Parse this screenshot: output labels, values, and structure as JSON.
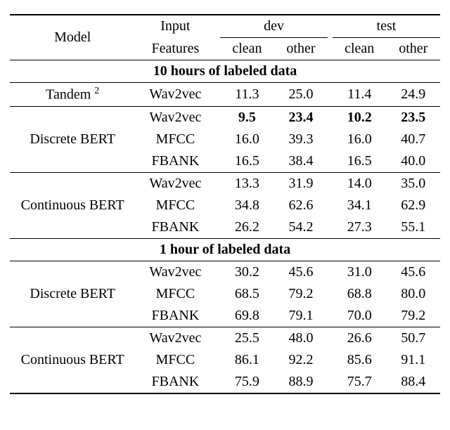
{
  "header": {
    "model": "Model",
    "features_top": "Input",
    "features_bottom": "Features",
    "dev": "dev",
    "test": "test",
    "clean": "clean",
    "other": "other"
  },
  "sections": [
    {
      "title": "10 hours of labeled data",
      "groups": [
        {
          "model": "Tandem",
          "sup": "2",
          "rows": [
            {
              "feat": "Wav2vec",
              "dev_clean": "11.3",
              "dev_other": "25.0",
              "test_clean": "11.4",
              "test_other": "24.9",
              "bold": false
            }
          ]
        },
        {
          "model": "Discrete BERT",
          "rows": [
            {
              "feat": "Wav2vec",
              "dev_clean": "9.5",
              "dev_other": "23.4",
              "test_clean": "10.2",
              "test_other": "23.5",
              "bold": true
            },
            {
              "feat": "MFCC",
              "dev_clean": "16.0",
              "dev_other": "39.3",
              "test_clean": "16.0",
              "test_other": "40.7",
              "bold": false
            },
            {
              "feat": "FBANK",
              "dev_clean": "16.5",
              "dev_other": "38.4",
              "test_clean": "16.5",
              "test_other": "40.0",
              "bold": false
            }
          ]
        },
        {
          "model": "Continuous BERT",
          "rows": [
            {
              "feat": "Wav2vec",
              "dev_clean": "13.3",
              "dev_other": "31.9",
              "test_clean": "14.0",
              "test_other": "35.0",
              "bold": false
            },
            {
              "feat": "MFCC",
              "dev_clean": "34.8",
              "dev_other": "62.6",
              "test_clean": "34.1",
              "test_other": "62.9",
              "bold": false
            },
            {
              "feat": "FBANK",
              "dev_clean": "26.2",
              "dev_other": "54.2",
              "test_clean": "27.3",
              "test_other": "55.1",
              "bold": false
            }
          ]
        }
      ]
    },
    {
      "title": "1 hour of labeled data",
      "groups": [
        {
          "model": "Discrete BERT",
          "rows": [
            {
              "feat": "Wav2vec",
              "dev_clean": "30.2",
              "dev_other": "45.6",
              "test_clean": "31.0",
              "test_other": "45.6",
              "bold": false
            },
            {
              "feat": "MFCC",
              "dev_clean": "68.5",
              "dev_other": "79.2",
              "test_clean": "68.8",
              "test_other": "80.0",
              "bold": false
            },
            {
              "feat": "FBANK",
              "dev_clean": "69.8",
              "dev_other": "79.1",
              "test_clean": "70.0",
              "test_other": "79.2",
              "bold": false
            }
          ]
        },
        {
          "model": "Continuous BERT",
          "rows": [
            {
              "feat": "Wav2vec",
              "dev_clean": "25.5",
              "dev_other": "48.0",
              "test_clean": "26.6",
              "test_other": "50.7",
              "bold": false
            },
            {
              "feat": "MFCC",
              "dev_clean": "86.1",
              "dev_other": "92.2",
              "test_clean": "85.6",
              "test_other": "91.1",
              "bold": false
            },
            {
              "feat": "FBANK",
              "dev_clean": "75.9",
              "dev_other": "88.9",
              "test_clean": "75.7",
              "test_other": "88.4",
              "bold": false
            }
          ]
        }
      ]
    }
  ],
  "style": {
    "font_family": "Times New Roman",
    "font_size_pt": 20,
    "rule_color": "#000000",
    "background": "#ffffff"
  }
}
